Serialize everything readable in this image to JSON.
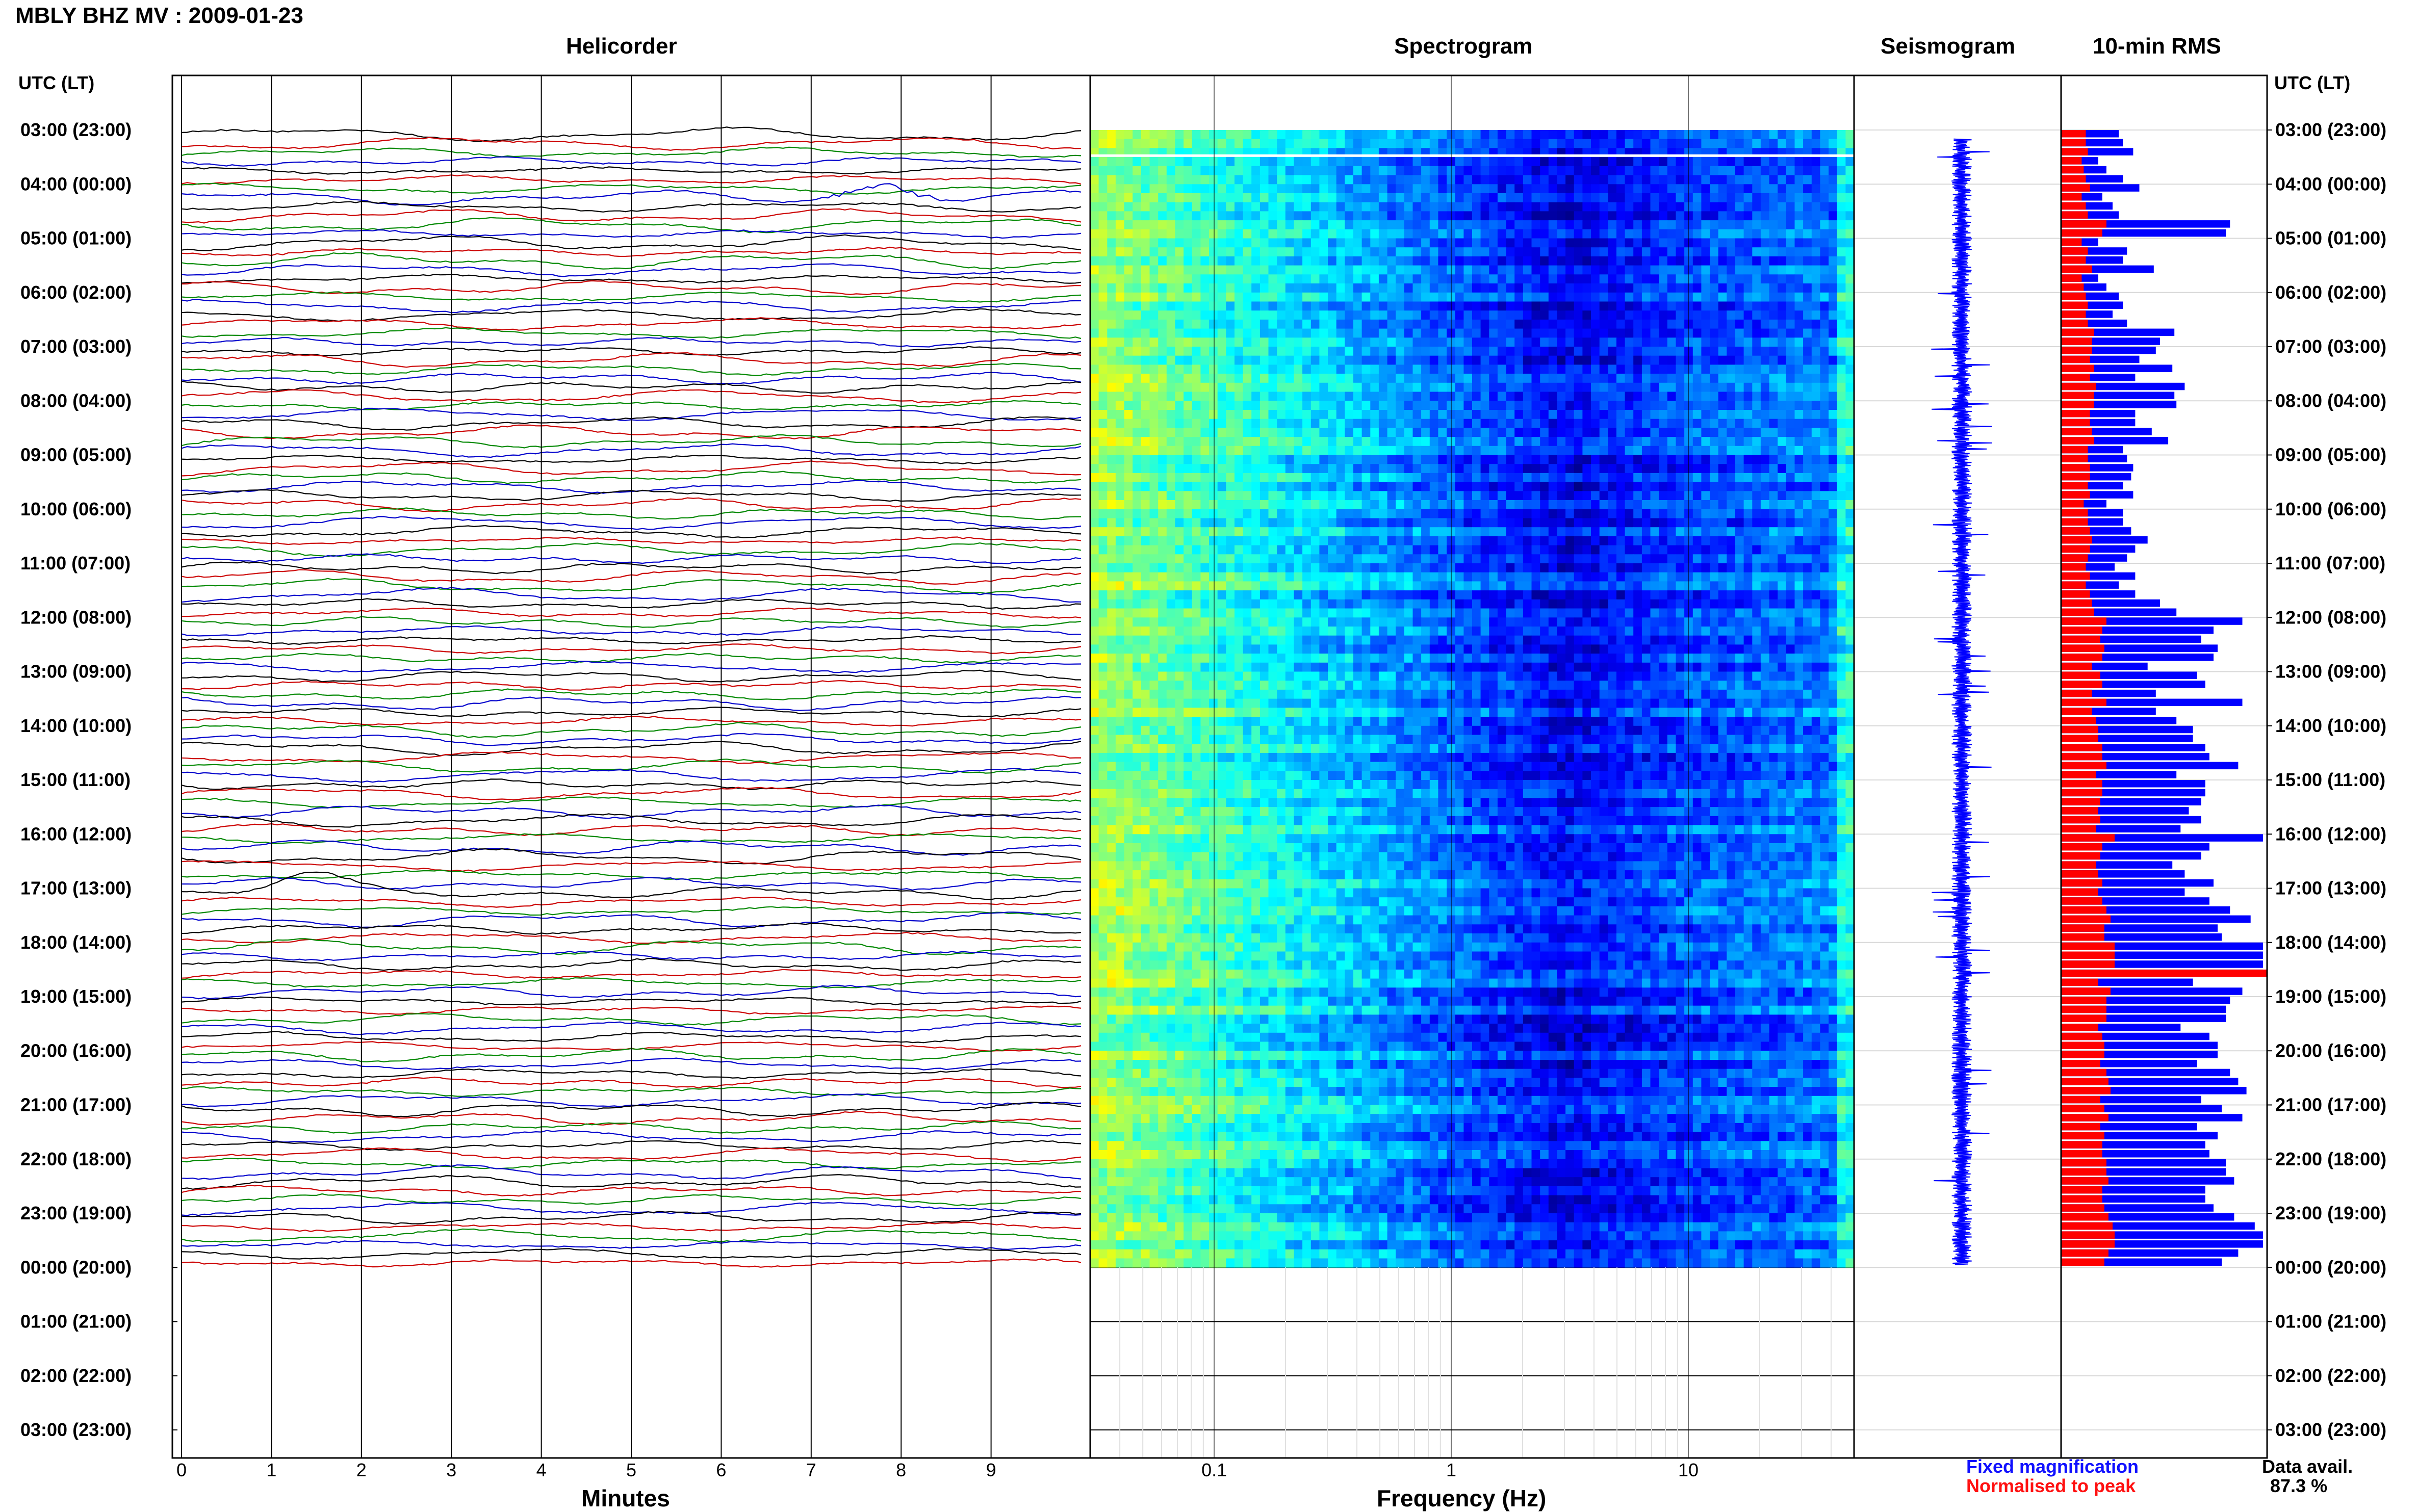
{
  "title": "MBLY BHZ MV : 2009-01-23",
  "panels": {
    "helicorder": "Helicorder",
    "spectrogram": "Spectrogram",
    "seismogram": "Seismogram",
    "rms": "10-min RMS"
  },
  "time_axis_label": "UTC (LT)",
  "time_ticks": [
    "03:00 (23:00)",
    "04:00 (00:00)",
    "05:00 (01:00)",
    "06:00 (02:00)",
    "07:00 (03:00)",
    "08:00 (04:00)",
    "09:00 (05:00)",
    "10:00 (06:00)",
    "11:00 (07:00)",
    "12:00 (08:00)",
    "13:00 (09:00)",
    "14:00 (10:00)",
    "15:00 (11:00)",
    "16:00 (12:00)",
    "17:00 (13:00)",
    "18:00 (14:00)",
    "19:00 (15:00)",
    "20:00 (16:00)",
    "21:00 (17:00)",
    "22:00 (18:00)",
    "23:00 (19:00)",
    "00:00 (20:00)",
    "01:00 (21:00)",
    "02:00 (22:00)",
    "03:00 (23:00)"
  ],
  "helicorder_xlabel": "Minutes",
  "helicorder_xticks": [
    "0",
    "1",
    "2",
    "3",
    "4",
    "5",
    "6",
    "7",
    "8",
    "9"
  ],
  "spectrogram_xlabel": "Frequency (Hz)",
  "spectrogram_xticks": [
    "0.1",
    "1",
    "10"
  ],
  "legend": {
    "fixed": "Fixed magnification",
    "normalised": "Normalised to peak"
  },
  "data_availability": {
    "label": "Data avail.",
    "value": "87.3 %"
  },
  "colors": {
    "trace_cycle": [
      "#000000",
      "#cc0000",
      "#008800",
      "#0000cc"
    ],
    "rms_fixed": "#0000ff",
    "rms_normalised": "#ff0000"
  },
  "chart_data": [
    {
      "type": "line",
      "name": "helicorder",
      "title": "Helicorder",
      "xlabel": "Minutes",
      "xlim": [
        0,
        10
      ],
      "ylim_hours_utc": [
        3,
        27
      ],
      "rows": 126,
      "row_duration_min": 10,
      "data_start_utc": "03:00",
      "data_end_utc": "00:00",
      "events": [
        {
          "utc": "04:10",
          "minute": 7.8,
          "amplitude": "large"
        },
        {
          "utc": "17:00",
          "minute": 1.4,
          "amplitude": "medium"
        }
      ]
    },
    {
      "type": "heatmap",
      "name": "spectrogram",
      "title": "Spectrogram",
      "xlabel": "Frequency (Hz)",
      "xscale": "log",
      "xlim": [
        0.03,
        50
      ],
      "ylim_hours_utc": [
        3,
        27
      ],
      "colormap": "jet",
      "power_profile": {
        "0.03": 1.0,
        "0.05": 0.85,
        "0.1": 0.6,
        "0.3": 0.4,
        "1": 0.22,
        "3": 0.12,
        "10": 0.2,
        "40": 0.25
      }
    },
    {
      "type": "line",
      "name": "seismogram",
      "title": "Seismogram",
      "ylim_hours_utc": [
        3,
        27
      ],
      "color": "#0000ff"
    },
    {
      "type": "bar",
      "orientation": "horizontal",
      "name": "rms",
      "title": "10-min RMS",
      "ylim_hours_utc": [
        3,
        27
      ],
      "bar_minutes": 10,
      "xlim": [
        0,
        1
      ],
      "series": [
        {
          "name": "Fixed magnification",
          "color": "#0000ff",
          "values": [
            0.28,
            0.3,
            0.35,
            0.18,
            0.22,
            0.3,
            0.38,
            0.2,
            0.25,
            0.28,
            0.82,
            0.8,
            0.18,
            0.32,
            0.3,
            0.45,
            0.18,
            0.22,
            0.28,
            0.3,
            0.25,
            0.32,
            0.55,
            0.48,
            0.46,
            0.38,
            0.54,
            0.36,
            0.6,
            0.55,
            0.56,
            0.36,
            0.36,
            0.44,
            0.52,
            0.3,
            0.32,
            0.35,
            0.34,
            0.3,
            0.35,
            0.22,
            0.3,
            0.3,
            0.34,
            0.42,
            0.36,
            0.32,
            0.26,
            0.36,
            0.28,
            0.36,
            0.48,
            0.56,
            0.88,
            0.74,
            0.68,
            0.76,
            0.74,
            0.42,
            0.66,
            0.7,
            0.46,
            0.88,
            0.46,
            0.56,
            0.64,
            0.64,
            0.7,
            0.72,
            0.86,
            0.56,
            0.7,
            0.7,
            0.68,
            0.62,
            0.68,
            0.58,
            0.98,
            0.72,
            0.68,
            0.54,
            0.6,
            0.74,
            0.6,
            0.72,
            0.82,
            0.92,
            0.76,
            0.78,
            0.98,
            0.98,
            0.98,
            0.98,
            0.64,
            0.88,
            0.82,
            0.8,
            0.8,
            0.58,
            0.72,
            0.76,
            0.76,
            0.66,
            0.82,
            0.86,
            0.9,
            0.68,
            0.78,
            0.88,
            0.66,
            0.76,
            0.7,
            0.72,
            0.8,
            0.8,
            0.84,
            0.7,
            0.7,
            0.74,
            0.84,
            0.94,
            0.98,
            0.98,
            0.86,
            0.78
          ]
        },
        {
          "name": "Normalised to peak",
          "color": "#ff0000",
          "values": [
            0.12,
            0.12,
            0.13,
            0.1,
            0.11,
            0.12,
            0.14,
            0.1,
            0.12,
            0.13,
            0.22,
            0.2,
            0.1,
            0.13,
            0.12,
            0.15,
            0.1,
            0.11,
            0.12,
            0.13,
            0.12,
            0.13,
            0.16,
            0.15,
            0.15,
            0.14,
            0.16,
            0.14,
            0.17,
            0.16,
            0.16,
            0.14,
            0.14,
            0.15,
            0.16,
            0.13,
            0.13,
            0.14,
            0.14,
            0.13,
            0.14,
            0.11,
            0.13,
            0.13,
            0.14,
            0.15,
            0.14,
            0.13,
            0.12,
            0.14,
            0.12,
            0.14,
            0.15,
            0.16,
            0.22,
            0.2,
            0.19,
            0.21,
            0.2,
            0.15,
            0.19,
            0.2,
            0.15,
            0.22,
            0.15,
            0.17,
            0.18,
            0.18,
            0.2,
            0.2,
            0.22,
            0.17,
            0.2,
            0.2,
            0.19,
            0.18,
            0.19,
            0.17,
            0.26,
            0.2,
            0.19,
            0.17,
            0.18,
            0.2,
            0.18,
            0.2,
            0.22,
            0.24,
            0.21,
            0.21,
            0.26,
            0.26,
            0.26,
            1.0,
            0.18,
            0.24,
            0.22,
            0.22,
            0.22,
            0.18,
            0.2,
            0.21,
            0.21,
            0.19,
            0.22,
            0.23,
            0.24,
            0.19,
            0.21,
            0.23,
            0.19,
            0.21,
            0.2,
            0.2,
            0.22,
            0.22,
            0.23,
            0.2,
            0.2,
            0.21,
            0.23,
            0.25,
            0.26,
            0.26,
            0.23,
            0.21
          ]
        }
      ]
    }
  ]
}
